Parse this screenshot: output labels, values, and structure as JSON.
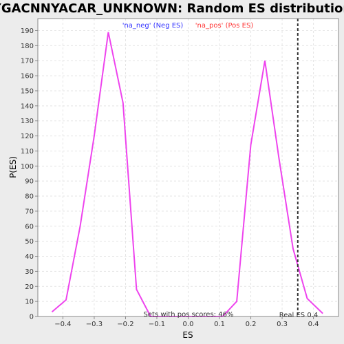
{
  "chart_data": {
    "type": "line",
    "title": "YGACNNYACAR_UNKNOWN: Random ES distribution",
    "xlabel": "ES",
    "ylabel": "P(ES)",
    "xlim": [
      -0.48,
      0.48
    ],
    "ylim": [
      0,
      198
    ],
    "xticks": [
      -0.4,
      -0.3,
      -0.2,
      -0.1,
      0.0,
      0.1,
      0.2,
      0.3,
      0.4
    ],
    "xtick_labels": [
      "−0.4",
      "−0.3",
      "−0.2",
      "−0.1",
      "0.0",
      "0.1",
      "0.2",
      "0.3",
      "0.4"
    ],
    "yticks": [
      0,
      10,
      20,
      30,
      40,
      50,
      60,
      70,
      80,
      90,
      100,
      110,
      120,
      130,
      140,
      150,
      160,
      170,
      180,
      190
    ],
    "grid": true,
    "legend": [
      "'na_neg' (Neg ES)",
      "'na_pos' (Pos ES)"
    ],
    "legend_colors": [
      "#3333ff",
      "#ff3333"
    ],
    "line_color": "#ee44ee",
    "series": [
      {
        "x": [
          -0.435,
          -0.39,
          -0.345,
          -0.3,
          -0.255,
          -0.208,
          -0.165,
          -0.12,
          -0.075,
          -0.03,
          0.015,
          0.06,
          0.11,
          0.155,
          0.2,
          0.245,
          0.29,
          0.335,
          0.38,
          0.43
        ],
        "values": [
          3,
          11,
          60,
          120,
          189,
          142,
          18,
          0,
          0,
          0,
          0,
          0,
          0,
          10,
          114,
          170,
          105,
          45,
          12,
          2
        ]
      }
    ],
    "vline": {
      "x": 0.35,
      "label": "Real ES 0.4"
    },
    "annotation": "Sets with pos scores: 46%"
  }
}
